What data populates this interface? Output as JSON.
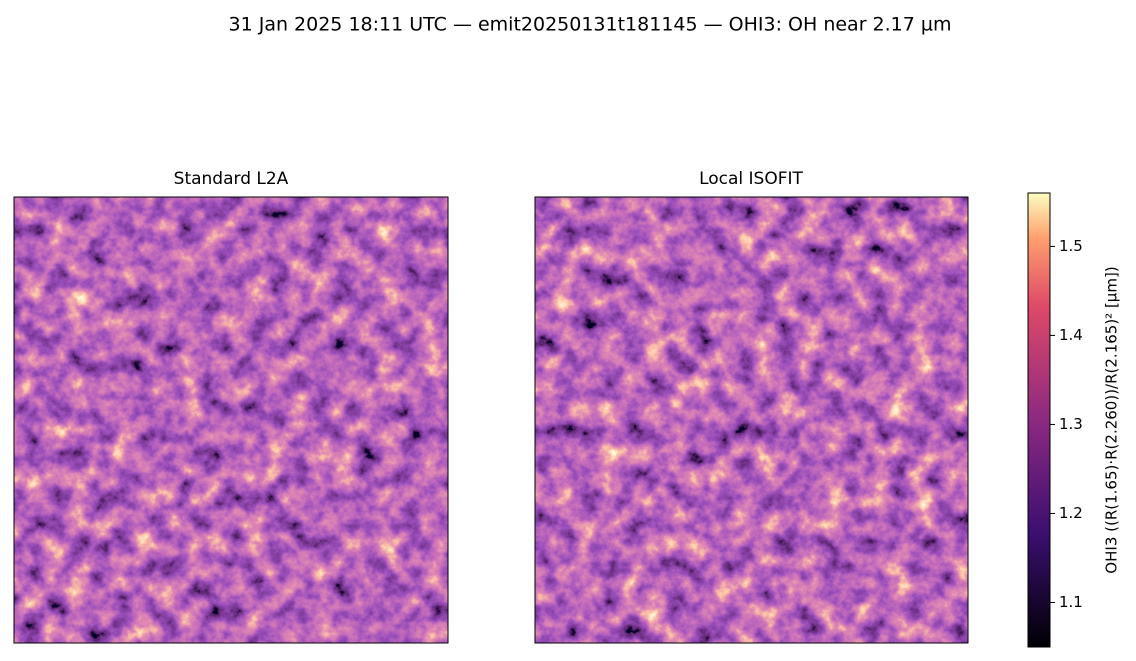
{
  "chart_data": {
    "type": "image",
    "title": "31 Jan 2025 18:11 UTC — emit20250131t181145 — OHI3: OH near 2.17 µm",
    "panels": [
      {
        "title": "Standard L2A"
      },
      {
        "title": "Local ISOFIT"
      }
    ],
    "colorbar": {
      "label": "OHI3  ((R(1.65)·R(2.260))/R(2.165)²  [µm])",
      "colormap": "magma",
      "ylim": [
        1.05,
        1.56
      ],
      "yticks": [
        1.1,
        1.2,
        1.3,
        1.4,
        1.5
      ]
    }
  }
}
